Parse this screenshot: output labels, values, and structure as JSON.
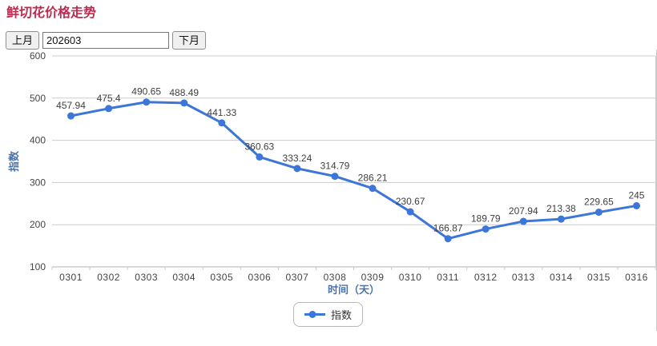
{
  "page": {
    "title": "鲜切花价格走势"
  },
  "toolbar": {
    "prev_label": "上月",
    "next_label": "下月",
    "input_value": "202603"
  },
  "chart_data": {
    "type": "line",
    "categories": [
      "0301",
      "0302",
      "0303",
      "0304",
      "0305",
      "0306",
      "0307",
      "0308",
      "0309",
      "0310",
      "0311",
      "0312",
      "0313",
      "0314",
      "0315",
      "0316"
    ],
    "series": [
      {
        "name": "指数",
        "values": [
          457.94,
          475.4,
          490.65,
          488.49,
          441.33,
          360.63,
          333.24,
          314.79,
          286.21,
          230.67,
          166.87,
          189.79,
          207.94,
          213.38,
          229.65,
          245
        ]
      }
    ],
    "xlabel": "时间（天）",
    "ylabel": "指数",
    "ylim": [
      100,
      600
    ],
    "yticks": [
      600,
      500,
      400,
      300,
      200,
      100
    ],
    "grid": true,
    "legend_position": "bottom",
    "colors": {
      "line": "#3b76d8",
      "grid": "#cccccc",
      "axis_line": "#b0b0b0",
      "tick_label": "#444444",
      "data_label": "#3f3f3f",
      "axis_title": "#4a74ac",
      "page_title": "#c2294e"
    }
  }
}
